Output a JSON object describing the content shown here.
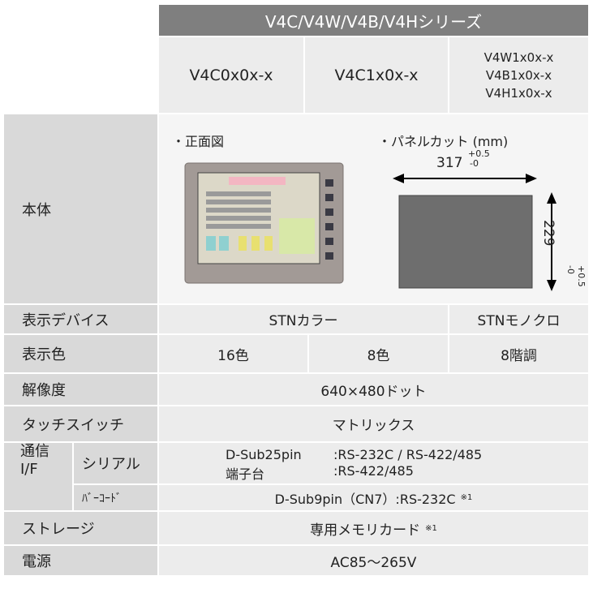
{
  "header": {
    "series": "V4C/V4W/V4B/V4Hシリーズ",
    "models": [
      [
        "V4C0x0x-x"
      ],
      [
        "V4C1x0x-x"
      ],
      [
        "V4W1x0x-x",
        "V4B1x0x-x",
        "V4H1x0x-x"
      ]
    ]
  },
  "body": {
    "label": "本体",
    "front_view": "・正面図",
    "panel_cut": "・パネルカット (mm)",
    "width": "317",
    "width_tol_plus": "+0.5",
    "width_tol_minus": "-0",
    "height": "229",
    "height_tol_plus": "+0.5",
    "height_tol_minus": "-0"
  },
  "display_device": {
    "label": "表示デバイス",
    "cells": [
      "STNカラー",
      "STNモノクロ"
    ]
  },
  "display_color": {
    "label": "表示色",
    "cells": [
      "16色",
      "8色",
      "8階調"
    ]
  },
  "resolution": {
    "label": "解像度",
    "text": "640×480ドット"
  },
  "touch_switch": {
    "label": "タッチスイッチ",
    "text": "マトリックス"
  },
  "comm": {
    "label": [
      "通信",
      "I/F"
    ],
    "serial": {
      "label": "シリアル",
      "names": [
        "D-Sub25pin",
        "端子台"
      ],
      "values": [
        ":RS-232C / RS-422/485",
        ":RS-422/485"
      ]
    },
    "barcode": {
      "label": "ﾊﾞｰｺｰﾄﾞ",
      "text": "D-Sub9pin（CN7）:RS-232C",
      "note": "※1"
    }
  },
  "storage": {
    "label": "ストレージ",
    "text": "専用メモリカード",
    "note": "※1"
  },
  "power": {
    "label": "電源",
    "text": "AC85～265V"
  }
}
